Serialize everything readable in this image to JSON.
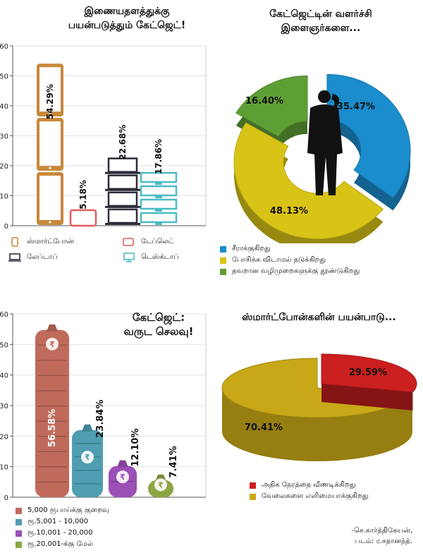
{
  "chart_data": [
    {
      "type": "bar",
      "title": "இணையதளத்துக்கு பயன்படுத்தும் கேட்ஜெட்!",
      "title_lines": [
        "இணையதளத்துக்கு",
        "பயன்படுத்தும் கேட்ஜெட்!"
      ],
      "categories": [
        "ஸ்மார்ட்போன்",
        "டேப்லெட்",
        "லேப்டாப்",
        "டெஸ்க்டாப்"
      ],
      "values": [
        54.29,
        5.18,
        22.68,
        17.86
      ],
      "labels": [
        "54.29%",
        "5.18%",
        "22.68%",
        "17.86%"
      ],
      "yticks": [
        "0",
        "10",
        "20",
        "30",
        "40",
        "50",
        "60"
      ],
      "ylim": [
        0,
        60
      ],
      "colors": {
        "smartphone": "#c8883a",
        "tablet": "#e45b5b",
        "laptop": "#2c2c3a",
        "desktop": "#4bbcc4"
      },
      "legend_position": "bottom"
    },
    {
      "type": "pie",
      "title": "கேட்ஜெட்டின் வளர்ச்சி இளைஞர்களை...",
      "title_lines": [
        "கேட்ஜெட்டின் வளர்ச்சி",
        "இளைஞர்களை..."
      ],
      "categories": [
        "சீராக்குகிறது",
        "போசிக்க விடாமல் தடுக்கிறது",
        "தவறான வழிமுறைகளுக்கு தூண்டுகிறது"
      ],
      "values": [
        35.47,
        48.13,
        16.4
      ],
      "labels": [
        "35.47%",
        "48.13%",
        "16.40%"
      ],
      "colors": [
        "#1b8ccc",
        "#d8c417",
        "#5e9f35"
      ],
      "legend_position": "bottom"
    },
    {
      "type": "bar",
      "title": "கேட்ஜெட்: வருட செலவு!",
      "title_lines": [
        "கேட்ஜெட்:",
        "வருட செலவு!"
      ],
      "categories": [
        "5,000 ரூபாய்க்கு குறைவு",
        "ரூ.5,001 - 10,000",
        "ரூ.10,001 - 20,000",
        "ரூ.20,001-க்கு மேல்"
      ],
      "values": [
        56.58,
        23.84,
        12.1,
        7.41
      ],
      "labels": [
        "56.58%",
        "23.84%",
        "12.10%",
        "7.41%"
      ],
      "yticks": [
        "0",
        "10",
        "20",
        "30",
        "40",
        "50",
        "60"
      ],
      "ylim": [
        0,
        60
      ],
      "colors": [
        "#c06a5c",
        "#4f9db1",
        "#9c4fb5",
        "#8ca544"
      ],
      "legend_position": "bottom-left"
    },
    {
      "type": "pie",
      "title": "ஸ்மார்ட்போன்களின் பயன்பாடு...",
      "categories": [
        "அதிக நேரத்தை வீணடிக்கிறது",
        "வேலைகளை எளிமையாக்குகிறது"
      ],
      "values": [
        29.59,
        70.41
      ],
      "labels": [
        "29.59%",
        "70.41%"
      ],
      "colors": [
        "#cc1f1f",
        "#c8a817"
      ],
      "legend_position": "bottom"
    }
  ],
  "credit": {
    "author": "-செ.கார்த்திகேயன்,",
    "photo": "படம்: ர.சதானந்த்."
  }
}
